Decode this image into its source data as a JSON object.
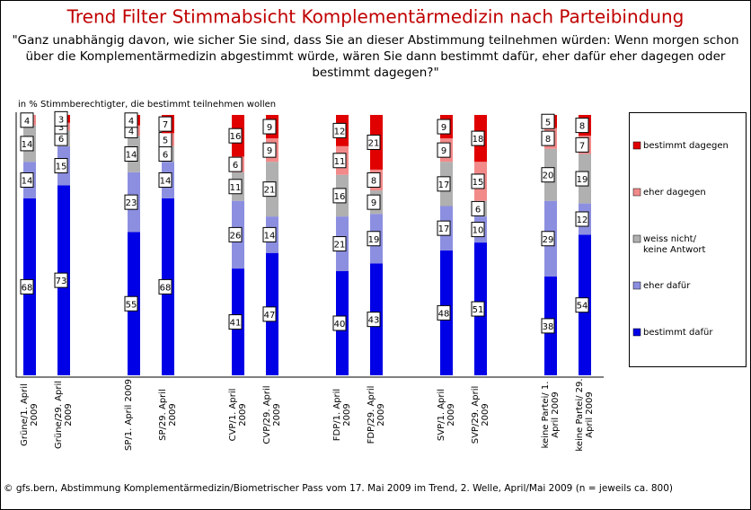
{
  "chart_data": {
    "type": "bar",
    "stacked": true,
    "title": "Trend Filter Stimmabsicht Komplementärmedizin nach Parteibindung",
    "subtitle": "\"Ganz unabhängig davon, wie sicher Sie sind, dass Sie an dieser Abstimmung teilnehmen würden: Wenn morgen schon über die Komplementärmedizin abgestimmt würde, wären Sie dann bestimmt dafür, eher dafür eher dagegen oder bestimmt dagegen?\"",
    "y_label": "in % Stimmberechtigter, die bestimmt teilnehmen wollen",
    "footer": "© gfs.bern, Abstimmung Komplementärmedizin/Biometrischer Pass vom 17. Mai 2009 im Trend, 2. Welle, April/Mai 2009 (n = jeweils ca. 800)",
    "categories": [
      "Grüne/1. April 2009",
      "Grüne/29. April 2009",
      "SP/1. April 2009",
      "SP/29. April 2009",
      "CVP/1. April 2009",
      "CVP/29. April 2009",
      "FDP/1. April 2009",
      "FDP/29. April 2009",
      "SVP/1. April 2009",
      "SVP/29. April 2009",
      "keine Partei/ 1. April 2009",
      "keine Partei/ 29. April 2009"
    ],
    "ylim": [
      0,
      100
    ],
    "series": [
      {
        "name": "bestimmt dafür",
        "color": "#0000e6",
        "values": [
          68,
          73,
          55,
          68,
          41,
          47,
          40,
          43,
          48,
          51,
          38,
          54
        ]
      },
      {
        "name": "eher dafür",
        "color": "#8c8fe0",
        "values": [
          14,
          15,
          23,
          14,
          26,
          14,
          21,
          19,
          17,
          10,
          29,
          12
        ]
      },
      {
        "name": "weiss nicht/keine Antwort",
        "color": "#b0b0b0",
        "values": [
          14,
          6,
          14,
          6,
          11,
          21,
          16,
          9,
          17,
          6,
          20,
          19
        ]
      },
      {
        "name": "eher dagegen",
        "color": "#f28a8a",
        "values": [
          4,
          3,
          4,
          5,
          6,
          9,
          11,
          8,
          9,
          15,
          8,
          7
        ]
      },
      {
        "name": "bestimmt dagegen",
        "color": "#e00000",
        "values": [
          0,
          3,
          4,
          7,
          16,
          9,
          12,
          21,
          9,
          18,
          5,
          8
        ]
      }
    ]
  }
}
